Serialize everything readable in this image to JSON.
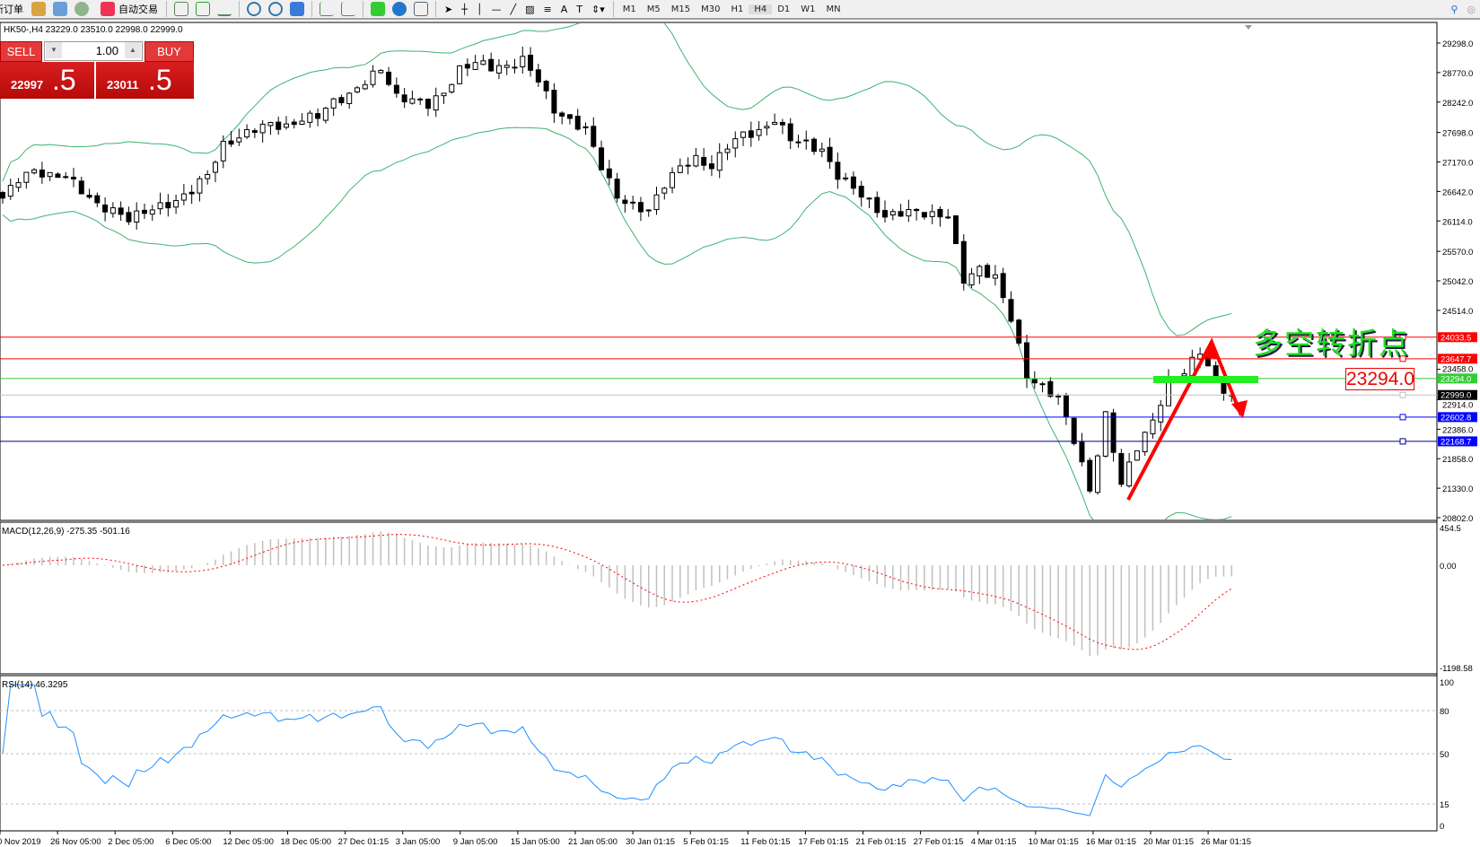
{
  "toolbar": {
    "new_order": "新订单",
    "auto_trading": "自动交易",
    "timeframes": [
      "M1",
      "M5",
      "M15",
      "M30",
      "H1",
      "H4",
      "D1",
      "W1",
      "MN"
    ],
    "active_timeframe": "H4"
  },
  "chart_header": "HK50-,H4  23229.0 23510.0 22998.0 22999.0",
  "trade_panel": {
    "sell_label": "SELL",
    "buy_label": "BUY",
    "lot": "1.00",
    "sell_price_main": "22997",
    "sell_price_big": ".5",
    "buy_price_main": "23011",
    "buy_price_big": ".5"
  },
  "annotation": {
    "text": "多空转折点",
    "price_label": "23294.0",
    "color": "#22dd22"
  },
  "chart_data": [
    {
      "type": "candlestick",
      "symbol": "HK50-",
      "timeframe": "H4",
      "indicator": "Bollinger Bands",
      "closes": [
        26523,
        26800,
        27030,
        26980,
        26900,
        26600,
        26440,
        26350,
        26100,
        26250,
        26440,
        26480,
        26600,
        26945,
        27540,
        27600,
        27700,
        27877,
        27850,
        27900,
        27950,
        28300,
        28400,
        28554,
        28808,
        28400,
        28300,
        28130,
        28400,
        28890,
        28950,
        28800,
        28900,
        29060,
        28600,
        28046,
        27950,
        27800,
        27030,
        26523,
        26450,
        26300,
        26700,
        27100,
        27285,
        27050,
        27400,
        27707,
        27750,
        27877,
        27550,
        27550,
        27400,
        26860,
        26700,
        26523,
        26184,
        26200,
        26300,
        26280,
        26184,
        25000,
        25300,
        25150,
        24320,
        23300,
        23200,
        22970,
        22130,
        21280,
        22700,
        21400,
        22000,
        22550,
        23300,
        23380,
        23730,
        23300,
        22999
      ],
      "yaxis_ticks": [
        "29298.0",
        "28770.0",
        "28242.0",
        "27698.0",
        "27170.0",
        "26642.0",
        "26114.0",
        "25570.0",
        "25042.0",
        "24514.0",
        "23458.0",
        "22914.0",
        "22386.0",
        "21858.0",
        "21330.0",
        "20802.0"
      ],
      "ylim": [
        20802,
        29298
      ],
      "xaxis_ticks": [
        "0 Nov 2019",
        "26 Nov 05:00",
        "2 Dec 05:00",
        "6 Dec 05:00",
        "12 Dec 05:00",
        "18 Dec 05:00",
        "27 Dec 01:15",
        "3 Jan 05:00",
        "9 Jan 05:00",
        "15 Jan 05:00",
        "21 Jan 05:00",
        "30 Jan 01:15",
        "5 Feb 01:15",
        "11 Feb 01:15",
        "17 Feb 01:15",
        "21 Feb 01:15",
        "27 Feb 01:15",
        "4 Mar 01:15",
        "10 Mar 01:15",
        "16 Mar 01:15",
        "20 Mar 01:15",
        "26 Mar 01:15"
      ],
      "hlines": [
        {
          "value": 24033.5,
          "label": "24033.5",
          "color": "#ff0000"
        },
        {
          "value": 23647.7,
          "label": "23647.7",
          "color": "#ff0000"
        },
        {
          "value": 23294.0,
          "label": "23294.0",
          "color": "#33cc33"
        },
        {
          "value": 22999.0,
          "label": "22999.0",
          "color": "#c0c0c0",
          "tag": "#000000"
        },
        {
          "value": 22602.8,
          "label": "22602.8",
          "color": "#0000ff"
        },
        {
          "value": 22168.7,
          "label": "22168.7",
          "color": "#000080",
          "tag": "#0000ff"
        }
      ],
      "band_color": "#3cb371"
    },
    {
      "type": "bar",
      "title": "MACD(12,26,9) -275.35 -501.16",
      "yaxis_ticks": [
        "454.5",
        "0.00",
        "-1198.58"
      ],
      "ylim": [
        -1198.58,
        454.5
      ],
      "histogram_color": "#c0c0c0",
      "signal_color": "#ff0000"
    },
    {
      "type": "line",
      "title": "RSI(14) 46.3295",
      "yaxis_ticks": [
        "100",
        "80",
        "50",
        "15",
        "0"
      ],
      "levels": [
        80,
        50,
        15
      ],
      "ylim": [
        0,
        100
      ],
      "color": "#1e90ff"
    }
  ]
}
